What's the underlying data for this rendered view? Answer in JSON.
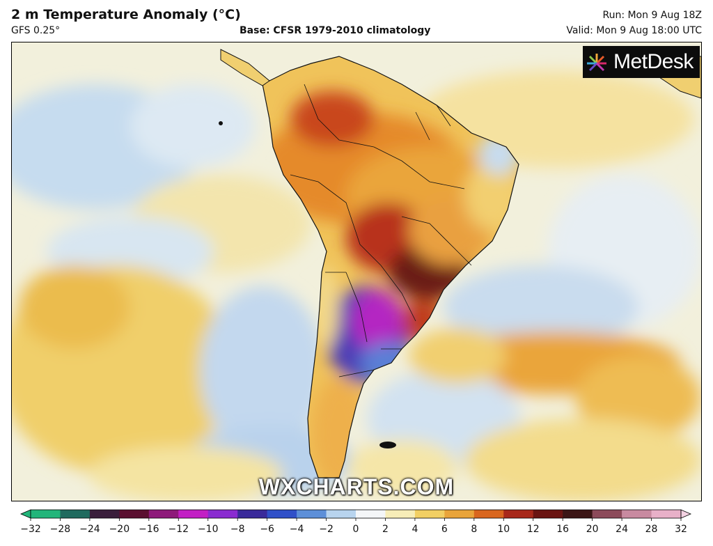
{
  "header": {
    "title": "2 m Temperature Anomaly (°C)",
    "model": "GFS 0.25°",
    "base": "Base: CFSR 1979-2010 climatology",
    "run": "Run: Mon 9 Aug 18Z",
    "valid": "Valid: Mon 9 Aug 18:00 UTC"
  },
  "map": {
    "logo_text": "MetDesk",
    "watermark": "WXCHARTS.COM",
    "icon": "metdesk-logo-icon"
  },
  "colorbar": {
    "ticks": [
      -32,
      -28,
      -24,
      -20,
      -16,
      -12,
      -10,
      -8,
      -6,
      -4,
      -2,
      0,
      2,
      4,
      6,
      8,
      10,
      12,
      16,
      20,
      24,
      28,
      32
    ],
    "colors": [
      "#22b57a",
      "#1f6a5e",
      "#3a1e3b",
      "#5a1030",
      "#8e1a7a",
      "#c21fc4",
      "#8a2bd0",
      "#3a2a9a",
      "#3050c8",
      "#5d8fd8",
      "#b8d4ee",
      "#f4f6f8",
      "#f7edb8",
      "#f2cf63",
      "#e9a43a",
      "#d9661e",
      "#a8281a",
      "#6a1412",
      "#3b1616",
      "#8c4a5a",
      "#c88aa0",
      "#e8b0c8",
      "#f4d2e2"
    ]
  }
}
